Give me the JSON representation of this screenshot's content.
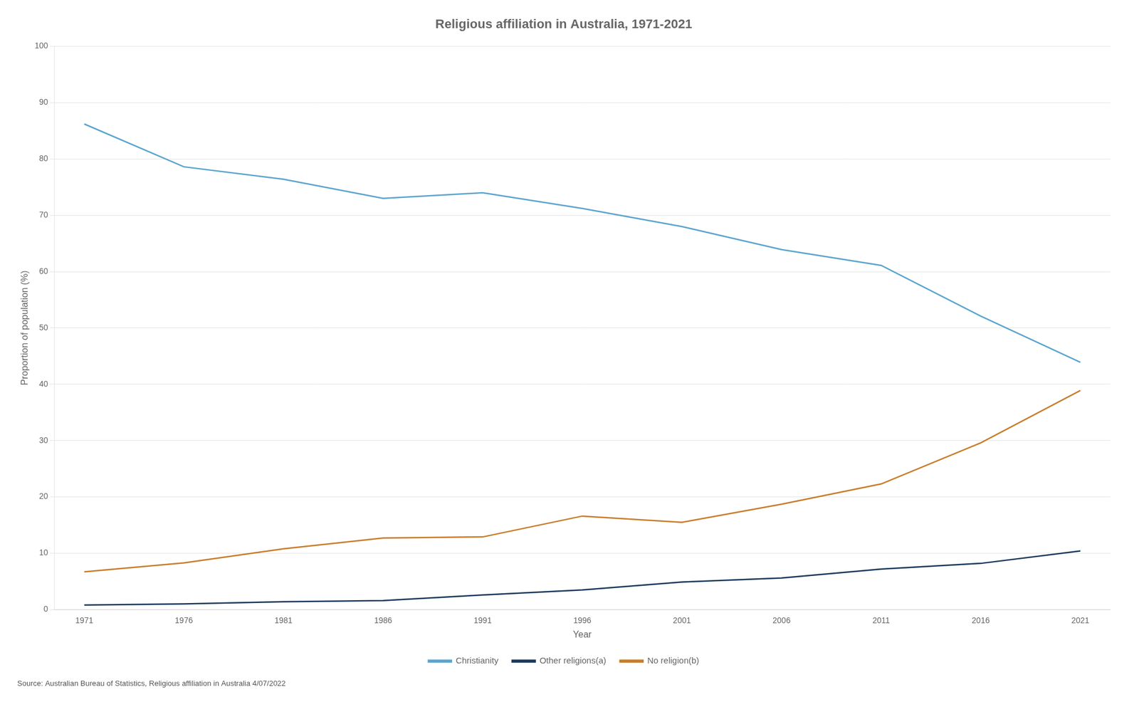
{
  "chart_data": {
    "type": "line",
    "title": "Religious affiliation in Australia, 1971-2021",
    "x_label": "Year",
    "y_label": "Proportion of population (%)",
    "source": "Source: Australian Bureau of Statistics, Religious affiliation in Australia 4/07/2022",
    "x": [
      1971,
      1976,
      1981,
      1986,
      1991,
      1996,
      2001,
      2006,
      2011,
      2016,
      2021
    ],
    "series": [
      {
        "name": "Christianity",
        "color": "#5BA4CF",
        "values": [
          86.2,
          78.6,
          76.4,
          73.0,
          74.0,
          71.2,
          68.0,
          63.9,
          61.1,
          52.1,
          43.9
        ]
      },
      {
        "name": "Other religions(a)",
        "color": "#1B3A5C",
        "values": [
          0.8,
          1.0,
          1.4,
          1.6,
          2.6,
          3.5,
          4.9,
          5.6,
          7.2,
          8.2,
          10.4
        ]
      },
      {
        "name": "No religion(b)",
        "color": "#C87D2A",
        "values": [
          6.7,
          8.3,
          10.8,
          12.7,
          12.9,
          16.6,
          15.5,
          18.7,
          22.3,
          29.6,
          38.9
        ]
      }
    ],
    "xlim": [
      1969.5,
      2022.5
    ],
    "xticks": [
      1971,
      1976,
      1981,
      1986,
      1991,
      1996,
      2001,
      2006,
      2011,
      2016,
      2021
    ],
    "ylim": [
      0,
      100
    ],
    "yticks": [
      0,
      10,
      20,
      30,
      40,
      50,
      60,
      70,
      80,
      90,
      100
    ],
    "grid": "y",
    "legend": "bottom"
  }
}
